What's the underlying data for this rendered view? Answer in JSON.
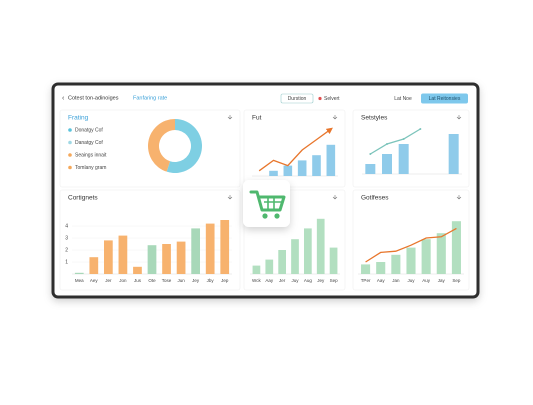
{
  "toolbar": {
    "title": "Cotest ton-adinoiges",
    "tab": "Fanfaring rate",
    "buttons": [
      "Durstion",
      "Selvert",
      "Lat Noe",
      "Lat Reitonsies"
    ]
  },
  "panels": [
    {
      "type": "donut",
      "title": "Frating",
      "legend": [
        {
          "label": "Donatgy Cof",
          "color": "#5bc3dc"
        },
        {
          "label": "Danatgy Cof",
          "color": "#9fd8e4"
        },
        {
          "label": "Seaings innait",
          "color": "#f5a85a"
        },
        {
          "label": "Tomlany gram",
          "color": "#f5a85a"
        }
      ],
      "values": [
        55,
        45
      ],
      "colors": [
        "#7ecfe3",
        "#f7b26e"
      ]
    },
    {
      "type": "bar-line",
      "title": "Fut",
      "ylim": [
        0,
        10
      ],
      "bars": {
        "values": [
          0,
          1,
          2,
          3,
          4,
          6
        ],
        "color": "#8fcbea"
      },
      "line": {
        "values": [
          1,
          3,
          2,
          5,
          7,
          9
        ],
        "color": "#e8762c"
      }
    },
    {
      "type": "bar-line",
      "title": "Setstyles",
      "ylim": [
        0,
        10
      ],
      "bars": {
        "values": [
          2,
          4,
          6,
          0,
          0,
          8
        ],
        "color": "#8fcbea"
      },
      "line": {
        "values": [
          4,
          6,
          7,
          9,
          null,
          null
        ],
        "color": "#7cc4bb"
      }
    },
    {
      "type": "bar-line",
      "title": "Cortignets",
      "ylim": [
        0,
        5
      ],
      "yticks": [
        1,
        2,
        3,
        4
      ],
      "categories": [
        "Mea",
        "Aey",
        "Jer",
        "Jon",
        "Jus",
        "Ote",
        "Tose",
        "Jun",
        "Jey",
        "Jby",
        "Jep"
      ],
      "bars": {
        "values": [
          0.1,
          1.4,
          2.8,
          3.2,
          0.6,
          2.4,
          2.5,
          2.7,
          3.8,
          4.2,
          4.5
        ],
        "colors": [
          "#a8d8b9",
          "#f7b26e",
          "#f7b26e",
          "#f7b26e",
          "#f7b26e",
          "#a8d8b9",
          "#f7b26e",
          "#f7b26e",
          "#a8d8b9",
          "#f7b26e",
          "#f7b26e"
        ]
      }
    },
    {
      "type": "bar-line",
      "title": "",
      "ylim": [
        0,
        5
      ],
      "categories": [
        "Wck",
        "Aay",
        "Jer",
        "Juy",
        "Aug",
        "Jey",
        "Sep"
      ],
      "bars": {
        "values": [
          0.7,
          1.2,
          2.0,
          2.9,
          3.8,
          4.6,
          2.2
        ],
        "color": "#b2dfc0"
      }
    },
    {
      "type": "bar-line",
      "title": "Gotlfeses",
      "ylim": [
        0,
        5
      ],
      "categories": [
        "TPer",
        "Aay",
        "Jan",
        "Juy",
        "Auy",
        "Jay",
        "Sep"
      ],
      "bars": {
        "values": [
          0.8,
          1.0,
          1.6,
          2.2,
          2.9,
          3.4,
          4.4
        ],
        "color": "#b2dfc0"
      },
      "line": {
        "values": [
          1.0,
          1.8,
          1.9,
          2.4,
          3.0,
          3.1,
          3.8
        ],
        "color": "#e8762c"
      }
    }
  ]
}
